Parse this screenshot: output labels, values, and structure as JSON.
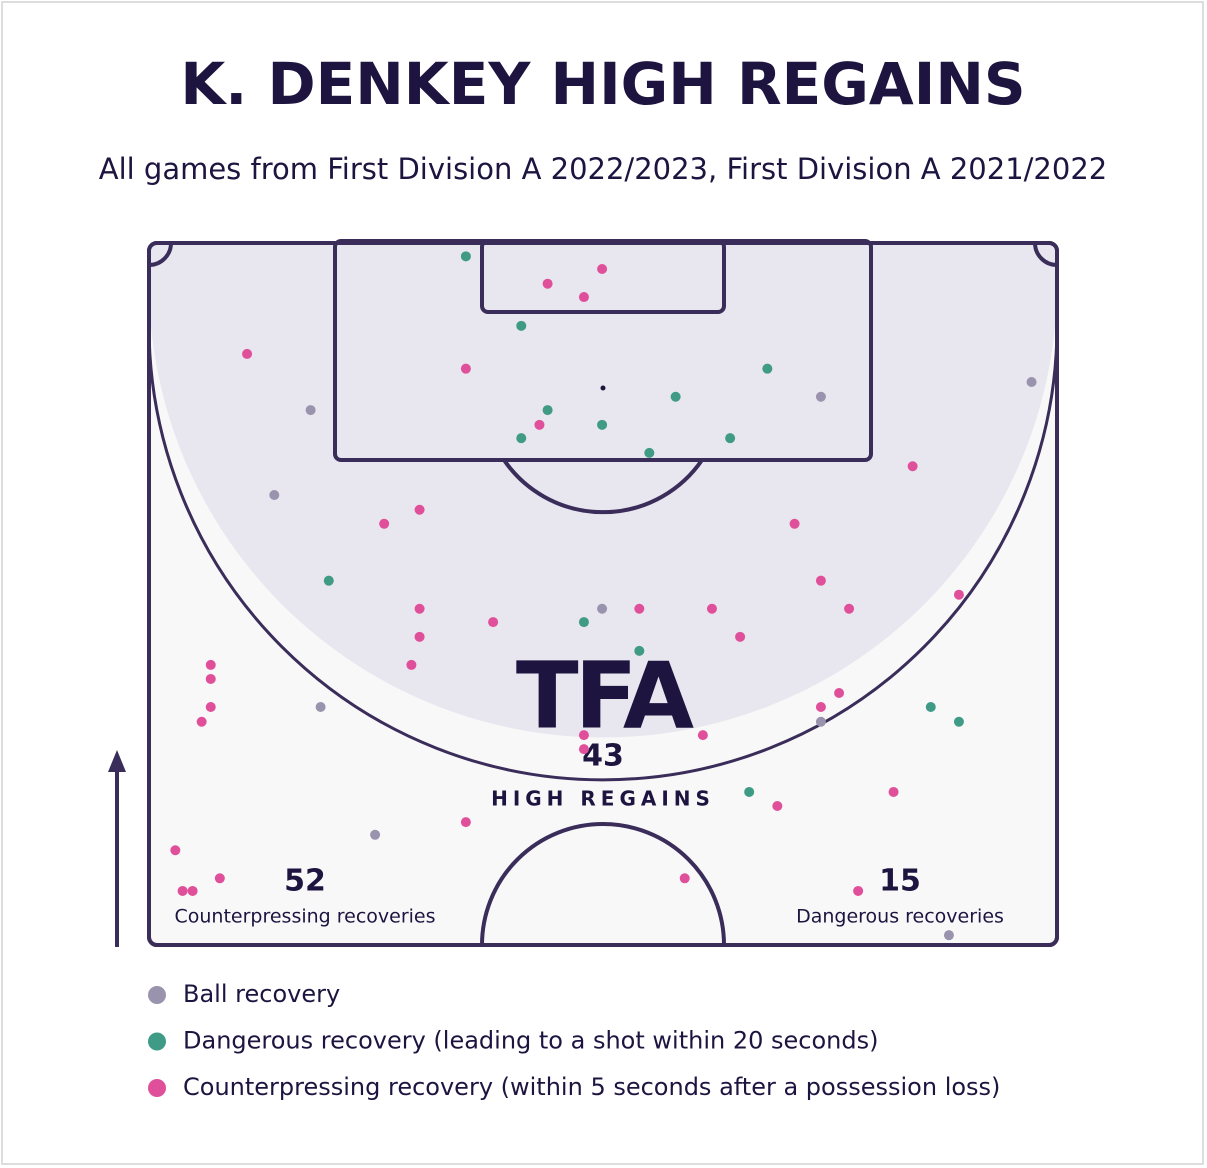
{
  "chart_data": {
    "type": "scatter",
    "title": "K. DENKEY HIGH REGAINS",
    "subtitle": "All games from First Division A 2022/2023, First Division A 2021/2022",
    "watermark": "TFA",
    "total": {
      "value": 43,
      "label": "HIGH REGAINS"
    },
    "stats": [
      {
        "value": 52,
        "label": "Counterpressing recoveries"
      },
      {
        "value": 15,
        "label": "Dangerous recoveries"
      }
    ],
    "xlim": [
      0,
      100
    ],
    "ylim": [
      0,
      100
    ],
    "series": [
      {
        "name": "Ball recovery",
        "color": "#9a93ad",
        "x": [
          17.8,
          13.8,
          18.9,
          24.9,
          49.9,
          74.0,
          97.2,
          74.0,
          88.1
        ],
        "values": [
          76.2,
          64.1,
          33.9,
          15.7,
          47.9,
          78.1,
          80.2,
          31.8,
          1.4
        ]
      },
      {
        "name": "Dangerous recovery (leading to a shot within 20 seconds)",
        "color": "#3f9b86",
        "x": [
          34.9,
          41.0,
          43.9,
          41.0,
          49.9,
          55.1,
          58.0,
          64.0,
          68.1,
          19.8,
          47.9,
          54.0,
          66.1,
          86.1,
          89.2
        ],
        "values": [
          98.1,
          88.2,
          76.2,
          72.2,
          74.1,
          70.1,
          78.1,
          72.2,
          82.1,
          51.9,
          46.0,
          41.9,
          21.8,
          33.9,
          31.8
        ]
      },
      {
        "name": "Counterpressing recovery (within 5 seconds after a possession loss)",
        "color": "#e0509a",
        "x": [
          43.9,
          49.9,
          47.9,
          10.8,
          34.9,
          43.0,
          84.1,
          25.9,
          29.8,
          71.1,
          74.0,
          77.1,
          89.2,
          29.8,
          29.8,
          37.9,
          54.0,
          62.0,
          65.1,
          28.9,
          6.8,
          6.8,
          6.8,
          5.8,
          74.0,
          76.0,
          61.0,
          47.9,
          47.9,
          82.0,
          69.2,
          34.9,
          2.9,
          3.7,
          4.8,
          7.8,
          59.0,
          78.1
        ],
        "values": [
          94.2,
          96.3,
          92.3,
          84.2,
          82.1,
          74.1,
          68.2,
          60.0,
          62.0,
          60.0,
          51.9,
          47.9,
          49.9,
          47.9,
          43.9,
          46.0,
          47.9,
          47.9,
          43.9,
          39.9,
          39.9,
          37.9,
          33.9,
          31.8,
          33.9,
          35.9,
          29.9,
          29.9,
          27.9,
          21.8,
          19.8,
          17.5,
          13.5,
          7.7,
          7.7,
          9.5,
          9.5,
          7.7
        ]
      }
    ]
  }
}
